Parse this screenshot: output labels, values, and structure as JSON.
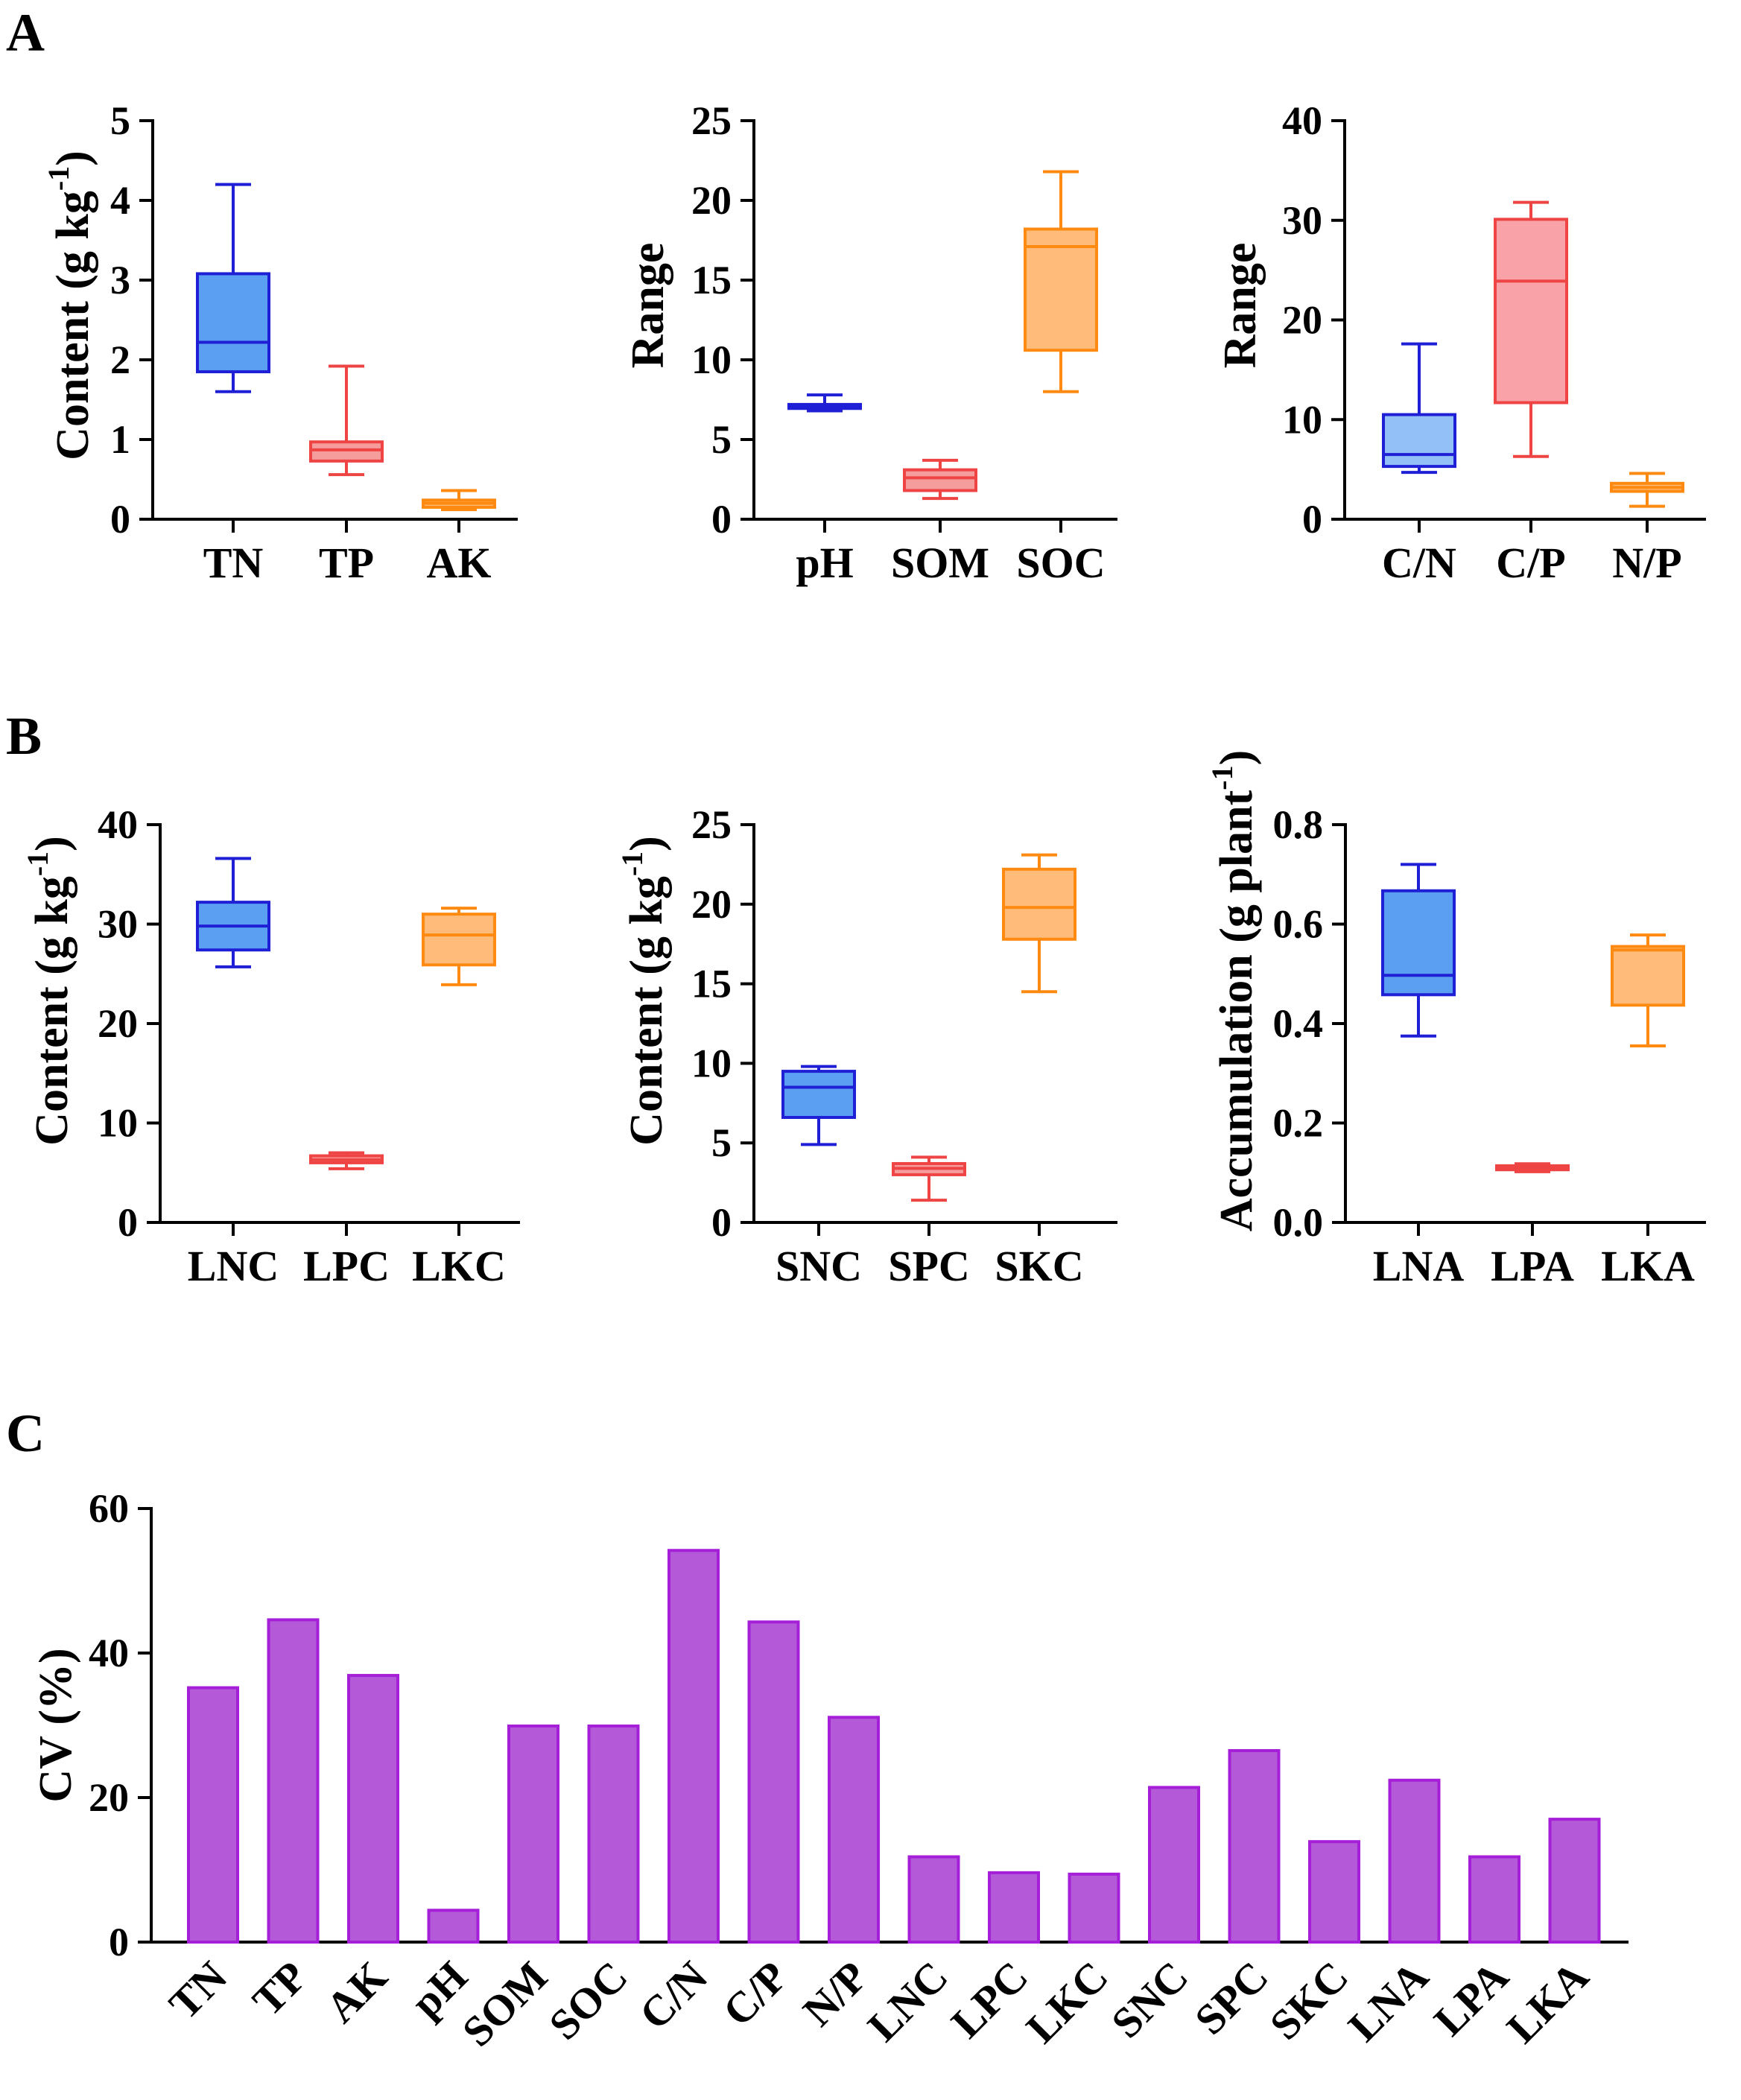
{
  "figure": {
    "panel_labels": [
      "A",
      "B",
      "C"
    ]
  },
  "chart_data": [
    {
      "id": "A1",
      "panel": "A",
      "type": "box",
      "ylabel": "Content (g kg",
      "ylabel_sup": "-1",
      "ylabel_tail": ")",
      "ylim": [
        0,
        5
      ],
      "yticks": [
        "0",
        "1",
        "2",
        "3",
        "4",
        "5"
      ],
      "categories": [
        "TN",
        "TP",
        "AK"
      ],
      "boxes": [
        {
          "name": "TN",
          "min": 1.6,
          "q1": 1.85,
          "median": 2.22,
          "q3": 3.08,
          "max": 4.2,
          "stroke": "#1f1fd6",
          "fill": "#5a9ff2"
        },
        {
          "name": "TP",
          "min": 0.56,
          "q1": 0.73,
          "median": 0.87,
          "q3": 0.97,
          "max": 1.92,
          "stroke": "#ee4444",
          "fill": "#f59d9d"
        },
        {
          "name": "AK",
          "min": 0.12,
          "q1": 0.15,
          "median": 0.2,
          "q3": 0.24,
          "max": 0.36,
          "stroke": "#ff8a12",
          "fill": "#ffbb7a"
        }
      ]
    },
    {
      "id": "A2",
      "panel": "A",
      "type": "box",
      "ylabel": "Range",
      "ylabel_sup": "",
      "ylabel_tail": "",
      "ylim": [
        0,
        25
      ],
      "yticks": [
        "0",
        "5",
        "10",
        "15",
        "20",
        "25"
      ],
      "categories": [
        "pH",
        "SOM",
        "SOC"
      ],
      "boxes": [
        {
          "name": "pH",
          "min": 6.8,
          "q1": 6.95,
          "median": 7.05,
          "q3": 7.2,
          "max": 7.8,
          "stroke": "#1f1fd6",
          "fill": "#5a9ff2"
        },
        {
          "name": "SOM",
          "min": 1.3,
          "q1": 1.8,
          "median": 2.6,
          "q3": 3.1,
          "max": 3.7,
          "stroke": "#ee4444",
          "fill": "#f59d9d"
        },
        {
          "name": "SOC",
          "min": 8.0,
          "q1": 10.6,
          "median": 17.1,
          "q3": 18.2,
          "max": 21.8,
          "stroke": "#ff8a12",
          "fill": "#ffbb7a"
        }
      ]
    },
    {
      "id": "A3",
      "panel": "A",
      "type": "box",
      "ylabel": "Range",
      "ylabel_sup": "",
      "ylabel_tail": "",
      "ylim": [
        0,
        40
      ],
      "yticks": [
        "0",
        "10",
        "20",
        "30",
        "40"
      ],
      "categories": [
        "C/N",
        "C/P",
        "N/P"
      ],
      "boxes": [
        {
          "name": "C/N",
          "min": 4.7,
          "q1": 5.3,
          "median": 6.5,
          "q3": 10.5,
          "max": 17.6,
          "stroke": "#1f1fd6",
          "fill": "#93c1f7"
        },
        {
          "name": "C/P",
          "min": 6.3,
          "q1": 11.7,
          "median": 23.9,
          "q3": 30.1,
          "max": 31.8,
          "stroke": "#ee4444",
          "fill": "#f9a3a8"
        },
        {
          "name": "N/P",
          "min": 1.3,
          "q1": 2.8,
          "median": 3.2,
          "q3": 3.6,
          "max": 4.6,
          "stroke": "#ff8a12",
          "fill": "#ffbb7a"
        }
      ]
    },
    {
      "id": "B1",
      "panel": "B",
      "type": "box",
      "ylabel": "Content (g kg",
      "ylabel_sup": "-1",
      "ylabel_tail": ")",
      "ylim": [
        0,
        40
      ],
      "yticks": [
        "0",
        "10",
        "20",
        "30",
        "40"
      ],
      "categories": [
        "LNC",
        "LPC",
        "LKC"
      ],
      "boxes": [
        {
          "name": "LNC",
          "min": 25.7,
          "q1": 27.4,
          "median": 29.8,
          "q3": 32.2,
          "max": 36.6,
          "stroke": "#1f1fd6",
          "fill": "#5a9ff2"
        },
        {
          "name": "LPC",
          "min": 5.4,
          "q1": 6.0,
          "median": 6.3,
          "q3": 6.7,
          "max": 7.0,
          "stroke": "#ee4444",
          "fill": "#f59d9d"
        },
        {
          "name": "LKC",
          "min": 23.9,
          "q1": 25.9,
          "median": 28.9,
          "q3": 31.0,
          "max": 31.6,
          "stroke": "#ff8a12",
          "fill": "#ffbb7a"
        }
      ]
    },
    {
      "id": "B2",
      "panel": "B",
      "type": "box",
      "ylabel": "Content (g kg",
      "ylabel_sup": "-1",
      "ylabel_tail": ")",
      "ylim": [
        0,
        25
      ],
      "yticks": [
        "0",
        "5",
        "10",
        "15",
        "20",
        "25"
      ],
      "categories": [
        "SNC",
        "SPC",
        "SKC"
      ],
      "boxes": [
        {
          "name": "SNC",
          "min": 4.9,
          "q1": 6.6,
          "median": 8.5,
          "q3": 9.5,
          "max": 9.8,
          "stroke": "#1f1fd6",
          "fill": "#5a9ff2"
        },
        {
          "name": "SPC",
          "min": 1.4,
          "q1": 3.0,
          "median": 3.4,
          "q3": 3.7,
          "max": 4.1,
          "stroke": "#ee4444",
          "fill": "#f59d9d"
        },
        {
          "name": "SKC",
          "min": 14.5,
          "q1": 17.8,
          "median": 19.8,
          "q3": 22.2,
          "max": 23.1,
          "stroke": "#ff8a12",
          "fill": "#ffbb7a"
        }
      ]
    },
    {
      "id": "B3",
      "panel": "B",
      "type": "box",
      "ylabel": "Accumulation (g plant",
      "ylabel_sup": "-1",
      "ylabel_tail": ")",
      "ylim": [
        0,
        0.8
      ],
      "yticks": [
        "0.0",
        "0.2",
        "0.4",
        "0.6",
        "0.8"
      ],
      "categories": [
        "LNA",
        "LPA",
        "LKA"
      ],
      "boxes": [
        {
          "name": "LNA",
          "min": 0.375,
          "q1": 0.458,
          "median": 0.497,
          "q3": 0.667,
          "max": 0.72,
          "stroke": "#1f1fd6",
          "fill": "#5a9ff2"
        },
        {
          "name": "LPA",
          "min": 0.102,
          "q1": 0.106,
          "median": 0.11,
          "q3": 0.114,
          "max": 0.118,
          "stroke": "#ee4444",
          "fill": "#f59d9d"
        },
        {
          "name": "LKA",
          "min": 0.355,
          "q1": 0.437,
          "median": 0.548,
          "q3": 0.555,
          "max": 0.578,
          "stroke": "#ff8a12",
          "fill": "#ffbb7a"
        }
      ]
    },
    {
      "id": "C",
      "panel": "C",
      "type": "bar",
      "ylabel": "CV (%)",
      "ylim": [
        0,
        60
      ],
      "yticks": [
        "0",
        "20",
        "40",
        "60"
      ],
      "categories": [
        "TN",
        "TP",
        "AK",
        "pH",
        "SOM",
        "SOC",
        "C/N",
        "C/P",
        "N/P",
        "LNC",
        "LPC",
        "LKC",
        "SNC",
        "SPC",
        "SKC",
        "LNA",
        "LPA",
        "LKA"
      ],
      "values": [
        35.2,
        44.6,
        36.9,
        4.4,
        29.9,
        29.9,
        54.2,
        44.3,
        31.1,
        11.8,
        9.6,
        9.4,
        21.4,
        26.5,
        13.9,
        22.4,
        11.8,
        17.0
      ],
      "bar_fill": "#b459d8",
      "bar_stroke": "#a51fd8"
    }
  ]
}
